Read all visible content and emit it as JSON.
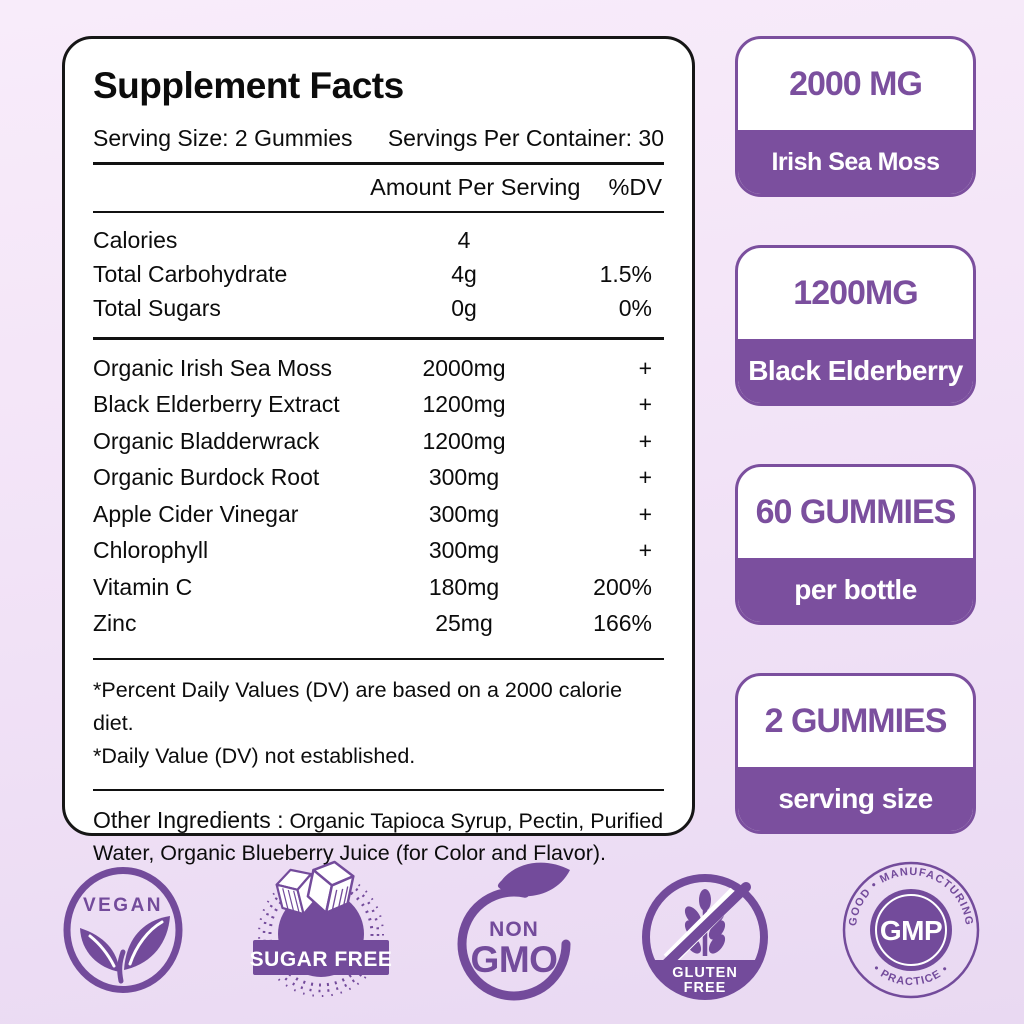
{
  "colors": {
    "badge_purple": "#7b4f9e",
    "icon_purple": "#734b9b",
    "panel_border": "#161616",
    "background_top": "#f8ecfa",
    "background_bottom": "#e9d9f2"
  },
  "panel": {
    "title": "Supplement Facts",
    "serving_size": "Serving Size: 2 Gummies",
    "servings_per_container": "Servings Per Container: 30",
    "col_amount_header": "Amount Per Serving",
    "col_dv_header": "%DV",
    "nutrition_rows": [
      {
        "name": "Calories",
        "amount": "4",
        "dv": ""
      },
      {
        "name": "Total Carbohydrate",
        "amount": "4g",
        "dv": "1.5%"
      },
      {
        "name": "Total Sugars",
        "amount": "0g",
        "dv": "0%"
      }
    ],
    "ingredient_rows": [
      {
        "name": "Organic Irish Sea Moss",
        "amount": "2000mg",
        "dv": "+"
      },
      {
        "name": "Black Elderberry Extract",
        "amount": "1200mg",
        "dv": "+"
      },
      {
        "name": "Organic Bladderwrack",
        "amount": "1200mg",
        "dv": "+"
      },
      {
        "name": "Organic Burdock Root",
        "amount": "300mg",
        "dv": "+"
      },
      {
        "name": "Apple Cider Vinegar",
        "amount": "300mg",
        "dv": "+"
      },
      {
        "name": "Chlorophyll",
        "amount": "300mg",
        "dv": "+"
      },
      {
        "name": "Vitamin C",
        "amount": "180mg",
        "dv": "200%"
      },
      {
        "name": "Zinc",
        "amount": "25mg",
        "dv": "166%"
      }
    ],
    "footnotes": [
      "*Percent Daily Values (DV) are based on a 2000 calorie diet.",
      "*Daily Value (DV) not established."
    ],
    "other_ingredients_label": "Other Ingredients :",
    "other_ingredients_text": "Organic Tapioca Syrup, Pectin, Purified Water, Organic  Blueberry Juice (for Color and Flavor)."
  },
  "badges": [
    {
      "value": "2000 MG",
      "label": "Irish Sea Moss"
    },
    {
      "value": "1200MG",
      "label": "Black Elderberry"
    },
    {
      "value": "60 GUMMIES",
      "label": "per bottle"
    },
    {
      "value": "2 GUMMIES",
      "label": "serving size"
    }
  ],
  "seals": {
    "vegan": "VEGAN",
    "sugar_free": "SUGAR FREE",
    "non_gmo_line1": "NON",
    "non_gmo_line2": "GMO",
    "gluten_line1": "GLUTEN",
    "gluten_line2": "FREE",
    "gmp_arc_top": "GOOD • MANUFACTURING",
    "gmp_arc_bottom": "• PRACTICE •",
    "gmp_center": "GMP"
  }
}
